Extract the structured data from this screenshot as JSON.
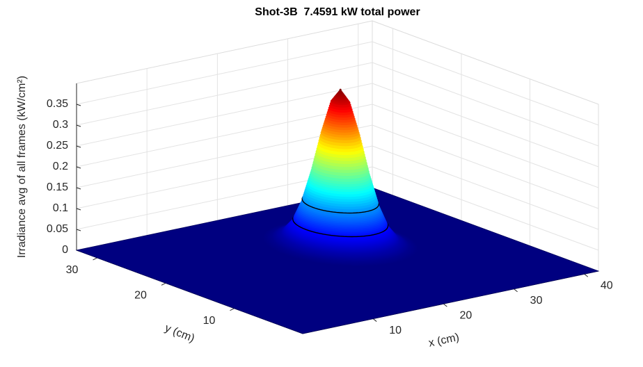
{
  "chart_data": {
    "type": "surface",
    "title": "Shot-3B  7.4591 kW total power",
    "xlabel": "x (cm)",
    "ylabel": "y (cm)",
    "zlabel": "Irradiance avg of all frames (kW/cm²)",
    "xlim": [
      0,
      42
    ],
    "ylim": [
      0,
      33
    ],
    "zlim": [
      0,
      0.4
    ],
    "xticks": [
      10,
      20,
      30,
      40
    ],
    "yticks": [
      10,
      20,
      30
    ],
    "zticks": [
      0,
      0.05,
      0.1,
      0.15,
      0.2,
      0.25,
      0.3,
      0.35
    ],
    "grid": true,
    "colormap": "jet",
    "peak": {
      "x": 25.5,
      "y": 20.7
    },
    "profile": {
      "r": [
        0,
        1,
        2,
        3,
        4,
        5,
        6,
        7,
        8
      ],
      "z": [
        0.37,
        0.339,
        0.262,
        0.169,
        0.092,
        0.042,
        0.016,
        0.005,
        0
      ]
    },
    "contour_levels": [
      0.05,
      0.1
    ]
  }
}
